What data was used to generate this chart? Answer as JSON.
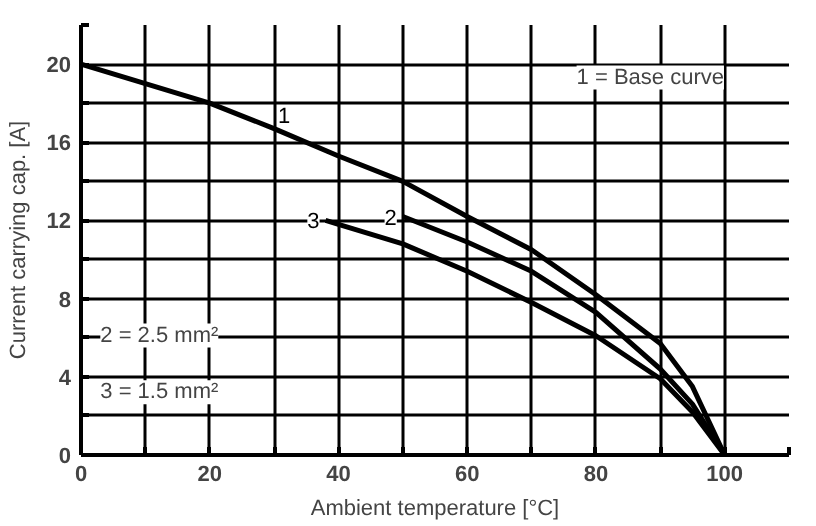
{
  "chart_data": {
    "type": "line",
    "xlabel": "Ambient temperature [°C]",
    "ylabel": "Current carrying cap. [A]",
    "xlim": [
      0,
      110
    ],
    "ylim": [
      0,
      22
    ],
    "xticks": [
      0,
      {
        "value": 10,
        "label": null
      },
      20,
      {
        "value": 30,
        "label": null
      },
      40,
      {
        "value": 50,
        "label": null
      },
      60,
      {
        "value": 70,
        "label": null
      },
      80,
      {
        "value": 90,
        "label": null
      },
      100,
      {
        "value": 110,
        "label": null
      }
    ],
    "yticks": [
      0,
      {
        "value": 2,
        "label": null
      },
      4,
      {
        "value": 6,
        "label": null
      },
      8,
      {
        "value": 10,
        "label": null
      },
      12,
      {
        "value": 14,
        "label": null
      },
      16,
      {
        "value": 18,
        "label": null
      },
      20,
      {
        "value": 22,
        "label": null
      }
    ],
    "grid": true,
    "marker": "none",
    "line_style": "solid",
    "series": [
      {
        "name": "1",
        "color": "#000000",
        "x": [
          0,
          10,
          20,
          30,
          40,
          50,
          60,
          70,
          80,
          90,
          95,
          100
        ],
        "values": [
          20,
          19,
          18,
          16.7,
          15.3,
          14,
          12.2,
          10.5,
          8.2,
          5.7,
          3.5,
          0
        ]
      },
      {
        "name": "2",
        "color": "#000000",
        "x": [
          50,
          60,
          70,
          80,
          90,
          95,
          100
        ],
        "values": [
          12.2,
          10.9,
          9.4,
          7.3,
          4.4,
          2.6,
          0
        ]
      },
      {
        "name": "3",
        "color": "#000000",
        "x": [
          38,
          40,
          50,
          60,
          70,
          80,
          90,
          95,
          100
        ],
        "values": [
          12,
          11.8,
          10.8,
          9.4,
          7.8,
          6.1,
          3.9,
          2.2,
          0
        ]
      }
    ],
    "annotations": [
      "1 = Base curve",
      "2 = 2.5 mm²",
      "3 = 1.5 mm²"
    ]
  }
}
